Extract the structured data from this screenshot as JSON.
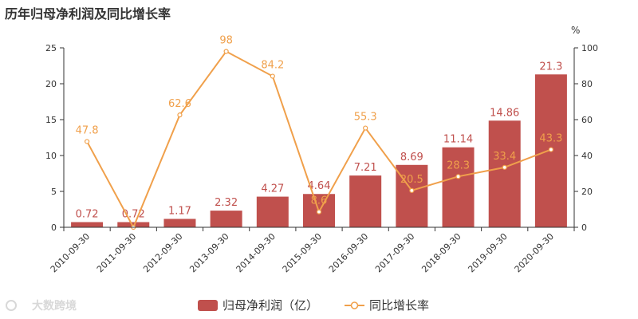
{
  "chart_data": {
    "type": "bar",
    "title": "历年归母净利润及同比增长率",
    "categories": [
      "2010-09-30",
      "2011-09-30",
      "2012-09-30",
      "2013-09-30",
      "2014-09-30",
      "2015-09-30",
      "2016-09-30",
      "2017-09-30",
      "2018-09-30",
      "2019-09-30",
      "2020-09-30"
    ],
    "series": [
      {
        "name": "归母净利润（亿）",
        "type": "bar",
        "axis": "left",
        "color": "#c0504d",
        "values": [
          0.72,
          0.72,
          1.17,
          2.32,
          4.27,
          4.64,
          7.21,
          8.69,
          11.14,
          14.86,
          21.3
        ],
        "labels": [
          "0.72",
          "0.72",
          "1.17",
          "2.32",
          "4.27",
          "4.64",
          "7.21",
          "8.69",
          "11.14",
          "14.86",
          "21.3"
        ]
      },
      {
        "name": "同比增长率",
        "type": "line",
        "axis": "right",
        "color": "#f0a04b",
        "values": [
          47.8,
          0,
          62.6,
          98,
          84.2,
          8.6,
          55.3,
          20.5,
          28.3,
          33.4,
          43.3
        ],
        "labels": [
          "47.8",
          "",
          "62.6",
          "98",
          "84.2",
          "8.6",
          "55.3",
          "20.5",
          "28.3",
          "33.4",
          "43.3"
        ]
      }
    ],
    "left_axis": {
      "ylim": [
        0,
        25
      ],
      "ticks": [
        0,
        5,
        10,
        15,
        20,
        25
      ]
    },
    "right_axis": {
      "unit": "%",
      "ylim": [
        0,
        100
      ],
      "ticks": [
        0,
        20,
        40,
        60,
        80,
        100
      ]
    },
    "legend_position": "bottom-center"
  },
  "watermark": "大数跨境"
}
